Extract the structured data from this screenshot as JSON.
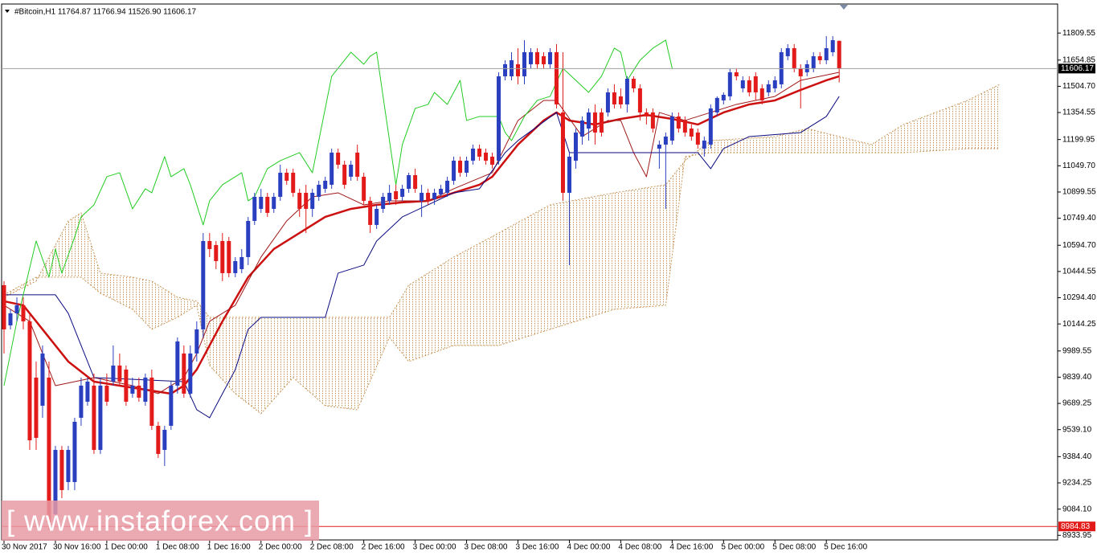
{
  "chart_data": {
    "type": "candlestick",
    "title": "#Bitcoin,H1  11764.87 11766.94 11526.90 11606.17",
    "watermark": "[ www.instaforex.com ]",
    "up_color": "#2a3fbf",
    "down_color": "#e31a1a",
    "xlim": [
      -0.375,
      164
    ],
    "ylim": [
      8926,
      11962
    ],
    "open": [
      10366,
      10136,
      10205,
      10251,
      10159,
      9837,
      9676,
      9837,
      9055,
      9423,
      9239,
      9239,
      9607,
      9699,
      9791,
      9423,
      9791,
      9814,
      9906,
      9883,
      9745,
      9791,
      9699,
      9837,
      9561,
      9423,
      9561,
      9791,
      9975,
      9745,
      9975,
      10113,
      10619,
      10596,
      10619,
      10619,
      10435,
      10458,
      10527,
      10734,
      10803,
      10872,
      10803,
      10872,
      11010,
      11010,
      10895,
      10895,
      10803,
      10872,
      10918,
      10941,
      11125,
      11056,
      10987,
      11125,
      10987,
      10849,
      10711,
      10803,
      10849,
      10904,
      10872,
      10918,
      10996,
      10849,
      10895,
      10858,
      10886,
      10895,
      10964,
      11079,
      11010,
      11079,
      11148,
      11125,
      11102,
      11079,
      11562,
      11562,
      11631,
      11562,
      11631,
      11700,
      11677,
      11631,
      11700,
      11355,
      10895,
      11079,
      11217,
      11263,
      11355,
      11355,
      11355,
      11470,
      11447,
      11401,
      11548,
      11493,
      11355,
      11355,
      11148,
      11171,
      11194,
      11332,
      11309,
      11263,
      11240,
      11148,
      11171,
      11355,
      11424,
      11447,
      11585,
      11493,
      11539,
      11562,
      11493,
      11470,
      11493,
      11516,
      11677,
      11723,
      11608,
      11585,
      11608,
      11677,
      11654,
      11700,
      11764.87
    ],
    "high": [
      10389,
      10228,
      10297,
      10297,
      10205,
      9929,
      10021,
      9929,
      9446,
      9446,
      9446,
      9607,
      9837,
      9837,
      9860,
      9837,
      9860,
      10021,
      9975,
      9906,
      9837,
      9837,
      9860,
      9883,
      9584,
      9561,
      9814,
      10067,
      10021,
      10021,
      10159,
      10665,
      10665,
      10619,
      10665,
      10642,
      10527,
      10573,
      10757,
      10895,
      10918,
      10895,
      10895,
      11056,
      11033,
      11033,
      10918,
      10941,
      10918,
      10964,
      10987,
      11148,
      11148,
      11079,
      11079,
      11171,
      11010,
      10872,
      10826,
      10895,
      10941,
      10941,
      10941,
      11010,
      11033,
      10941,
      10918,
      10918,
      10941,
      10987,
      11102,
      11102,
      11102,
      11171,
      11171,
      11148,
      11125,
      11585,
      11654,
      11700,
      11723,
      11769,
      11723,
      11723,
      11700,
      11723,
      11746,
      11700,
      11125,
      11263,
      11332,
      11378,
      11401,
      11378,
      11493,
      11516,
      11493,
      11562,
      11562,
      11516,
      11378,
      11378,
      11194,
      11240,
      11355,
      11355,
      11332,
      11286,
      11263,
      11217,
      11401,
      11447,
      11470,
      11608,
      11608,
      11562,
      11562,
      11585,
      11516,
      11539,
      11562,
      11723,
      11746,
      11746,
      11631,
      11654,
      11700,
      11700,
      11792,
      11792,
      11766.94
    ],
    "low": [
      9975,
      10113,
      10159,
      10113,
      9423,
      9423,
      9607,
      8963,
      9009,
      9147,
      9193,
      9193,
      9561,
      9676,
      9400,
      9400,
      9676,
      9791,
      9791,
      9676,
      9722,
      9699,
      9676,
      9538,
      9377,
      9331,
      9538,
      9745,
      9722,
      9722,
      9929,
      10067,
      10527,
      10458,
      10389,
      10412,
      10412,
      10435,
      10481,
      10711,
      10780,
      10757,
      10780,
      10849,
      10941,
      10872,
      10757,
      10665,
      10757,
      10849,
      10895,
      10918,
      11033,
      10918,
      10964,
      10964,
      10826,
      10665,
      10688,
      10780,
      10826,
      10826,
      10849,
      10895,
      10895,
      10757,
      10826,
      10826,
      10872,
      10872,
      10941,
      10987,
      10987,
      11056,
      11079,
      11056,
      11033,
      11056,
      11539,
      11539,
      11516,
      11516,
      11608,
      11608,
      11608,
      11608,
      11378,
      10849,
      10481,
      11033,
      11171,
      11194,
      11171,
      11217,
      11332,
      11378,
      11378,
      11355,
      11470,
      11309,
      11286,
      11240,
      11033,
      10803,
      11171,
      11240,
      11217,
      11194,
      11148,
      11102,
      11148,
      11332,
      11401,
      11424,
      11539,
      11470,
      11447,
      11424,
      11401,
      11447,
      11470,
      11493,
      11654,
      11585,
      11378,
      11562,
      11585,
      11631,
      11631,
      11677,
      11526.9
    ],
    "close": [
      10113,
      10205,
      10251,
      10159,
      9478,
      9492,
      9975,
      9009,
      9423,
      9193,
      9423,
      9584,
      9791,
      9814,
      9423,
      9791,
      9699,
      9906,
      9814,
      9699,
      9791,
      9722,
      9837,
      9561,
      9400,
      9538,
      9791,
      10044,
      9745,
      9975,
      10113,
      10619,
      10573,
      10504,
      10435,
      10435,
      10504,
      10527,
      10734,
      10872,
      10872,
      10780,
      10872,
      11010,
      10964,
      10895,
      10803,
      10803,
      10895,
      10941,
      10964,
      11125,
      11056,
      10941,
      11056,
      10987,
      10849,
      10711,
      10803,
      10872,
      10895,
      10858,
      10918,
      10996,
      10918,
      10895,
      10849,
      10895,
      10918,
      10964,
      11079,
      11010,
      11079,
      11148,
      11102,
      11079,
      11056,
      11562,
      11631,
      11654,
      11562,
      11700,
      11700,
      11631,
      11631,
      11700,
      11401,
      10895,
      11102,
      11240,
      11309,
      11355,
      11240,
      11240,
      11470,
      11401,
      11401,
      11548,
      11493,
      11355,
      11332,
      11263,
      11171,
      11217,
      11332,
      11263,
      11240,
      11217,
      11171,
      11194,
      11378,
      11438,
      11456,
      11585,
      11562,
      11539,
      11470,
      11470,
      11424,
      11516,
      11539,
      11700,
      11723,
      11608,
      11562,
      11631,
      11677,
      11654,
      11723,
      11769,
      11606.17
    ],
    "lines": [
      {
        "color": "#cc1010",
        "width": 2.5,
        "x": [
          0,
          3,
          6,
          10,
          14,
          18,
          22,
          26,
          28,
          30,
          32,
          34,
          38,
          42,
          46,
          50,
          54,
          58,
          62,
          66,
          70,
          74,
          76,
          80,
          84,
          86,
          88,
          92,
          96,
          100,
          104,
          108,
          112,
          116,
          120,
          124,
          128,
          130
        ],
        "values": [
          10274,
          10251,
          10113,
          9929,
          9814,
          9791,
          9768,
          9745,
          9791,
          9883,
          10021,
          10159,
          10412,
          10573,
          10665,
          10757,
          10803,
          10826,
          10840,
          10849,
          10895,
          10941,
          10987,
          11171,
          11309,
          11355,
          11309,
          11286,
          11318,
          11341,
          11318,
          11286,
          11355,
          11401,
          11424,
          11484,
          11539,
          11562
        ]
      },
      {
        "color": "#a01818",
        "width": 1,
        "x": [
          0,
          4,
          8,
          14,
          20,
          24,
          28,
          30,
          32,
          36,
          40,
          44,
          48,
          52,
          56,
          60,
          66,
          70,
          76,
          80,
          84,
          86,
          90,
          94,
          96,
          98,
          100,
          102,
          106,
          110,
          114,
          120,
          124,
          130
        ],
        "values": [
          10251,
          10159,
          9791,
          9837,
          9791,
          9745,
          9837,
          9975,
          10159,
          10251,
          10527,
          10734,
          10872,
          10895,
          10826,
          10849,
          10849,
          10918,
          11010,
          11309,
          11424,
          11424,
          11217,
          11309,
          11309,
          11125,
          10987,
          11355,
          11309,
          11355,
          11401,
          11447,
          11539,
          11585
        ]
      },
      {
        "color": "#0a0a80",
        "width": 1,
        "x": [
          0,
          8,
          10,
          14,
          28,
          30,
          32,
          36,
          38,
          40,
          50,
          52,
          56,
          58,
          62,
          70,
          74,
          78,
          80,
          86,
          88,
          100,
          108,
          110,
          112,
          116,
          124,
          128,
          130
        ],
        "values": [
          10311,
          10311,
          10205,
          9837,
          9814,
          9653,
          9607,
          9883,
          10113,
          10182,
          10182,
          10435,
          10481,
          10619,
          10757,
          10895,
          10918,
          11125,
          11194,
          11355,
          11125,
          11125,
          11125,
          11033,
          11148,
          11217,
          11240,
          11332,
          11447
        ]
      },
      {
        "color": "#22cc22",
        "width": 1,
        "x": [
          0,
          2,
          5,
          7,
          8,
          9,
          11,
          12,
          14,
          16,
          18,
          20,
          22,
          23,
          25,
          26,
          28,
          29,
          31,
          32,
          34,
          37,
          38,
          39,
          41,
          43,
          46,
          48,
          51,
          52,
          54,
          56,
          57,
          58,
          59,
          61,
          62,
          64,
          66,
          67,
          69,
          71,
          72,
          74,
          77,
          78,
          79,
          81,
          83,
          85,
          87,
          89,
          91,
          93,
          95,
          96,
          97,
          99,
          101,
          103,
          104
        ],
        "values": [
          9791,
          10159,
          10619,
          10412,
          10573,
          10435,
          10642,
          10757,
          10826,
          10987,
          11010,
          10803,
          10918,
          10895,
          11102,
          10987,
          11033,
          10941,
          10711,
          10849,
          10941,
          11010,
          10849,
          10872,
          11033,
          11079,
          11125,
          11010,
          11562,
          11608,
          11700,
          11631,
          11677,
          11700,
          11447,
          10941,
          11171,
          11378,
          11401,
          11470,
          11401,
          11539,
          11309,
          11332,
          11332,
          11240,
          11194,
          11332,
          11424,
          11447,
          11608,
          11539,
          11470,
          11562,
          11723,
          11700,
          11539,
          11654,
          11723,
          11769,
          11608
        ]
      }
    ],
    "cloud": {
      "color": "#c8965a",
      "x": [
        0,
        5,
        10,
        12,
        15,
        20,
        23,
        27,
        30,
        32,
        36,
        40,
        45,
        50,
        55,
        60,
        63,
        70,
        77,
        85,
        95,
        103,
        106,
        110,
        120,
        125,
        135,
        140,
        150,
        155
      ],
      "a": [
        10297,
        10389,
        10734,
        10780,
        10435,
        10412,
        10389,
        10297,
        10274,
        10182,
        10182,
        10182,
        10182,
        10182,
        10182,
        10182,
        10366,
        10527,
        10665,
        10826,
        10895,
        10941,
        11079,
        11194,
        11217,
        11263,
        11171,
        11286,
        11424,
        11516
      ],
      "b": [
        10311,
        10412,
        10412,
        10412,
        10320,
        10228,
        10113,
        10182,
        10251,
        9906,
        9745,
        9630,
        9837,
        9676,
        9653,
        10067,
        9929,
        10021,
        10021,
        10113,
        10228,
        10251,
        11102,
        11125,
        11125,
        11125,
        11125,
        11125,
        11148,
        11148
      ]
    },
    "price_lines": [
      {
        "value": 11606.17,
        "color": "#a0a0a0",
        "label_bg": "#000000"
      },
      {
        "value": 8984.83,
        "color": "#e31a1a",
        "label_bg": "#e31a1a"
      }
    ],
    "yticks": [
      {
        "value": 11809.55,
        "label": "11809.55"
      },
      {
        "value": 11654.85,
        "label": "11654.85"
      },
      {
        "value": 11504.7,
        "label": "11504.70"
      },
      {
        "value": 11354.55,
        "label": "11354.55"
      },
      {
        "value": 11199.95,
        "label": "11199.95"
      },
      {
        "value": 11049.7,
        "label": "11049.70"
      },
      {
        "value": 10899.55,
        "label": "10899.55"
      },
      {
        "value": 10749.4,
        "label": "10749.40"
      },
      {
        "value": 10594.7,
        "label": "10594.70"
      },
      {
        "value": 10444.55,
        "label": "10444.55"
      },
      {
        "value": 10294.4,
        "label": "10294.40"
      },
      {
        "value": 10144.25,
        "label": "10144.25"
      },
      {
        "value": 9989.55,
        "label": "9989.55"
      },
      {
        "value": 9839.4,
        "label": "9839.40"
      },
      {
        "value": 9689.25,
        "label": "9689.25"
      },
      {
        "value": 9539.1,
        "label": "9539.10"
      },
      {
        "value": 9384.4,
        "label": "9384.40"
      },
      {
        "value": 9234.25,
        "label": "9234.25"
      },
      {
        "value": 9084.1,
        "label": "9084.10"
      },
      {
        "value": 8933.95,
        "label": "8933.95"
      }
    ],
    "xticks": [
      {
        "value": 0,
        "label": "30 Nov 2017"
      },
      {
        "value": 8,
        "label": "30 Nov 16:00"
      },
      {
        "value": 16,
        "label": "1 Dec 00:00"
      },
      {
        "value": 24,
        "label": "1 Dec 08:00"
      },
      {
        "value": 32,
        "label": "1 Dec 16:00"
      },
      {
        "value": 40,
        "label": "2 Dec 00:00"
      },
      {
        "value": 48,
        "label": "2 Dec 08:00"
      },
      {
        "value": 56,
        "label": "2 Dec 16:00"
      },
      {
        "value": 64,
        "label": "3 Dec 00:00"
      },
      {
        "value": 72,
        "label": "3 Dec 08:00"
      },
      {
        "value": 80,
        "label": "3 Dec 16:00"
      },
      {
        "value": 88,
        "label": "4 Dec 00:00"
      },
      {
        "value": 96,
        "label": "4 Dec 08:00"
      },
      {
        "value": 104,
        "label": "4 Dec 16:00"
      },
      {
        "value": 112,
        "label": "5 Dec 00:00"
      },
      {
        "value": 120,
        "label": "5 Dec 08:00"
      },
      {
        "value": 128,
        "label": "5 Dec 16:00"
      }
    ]
  }
}
